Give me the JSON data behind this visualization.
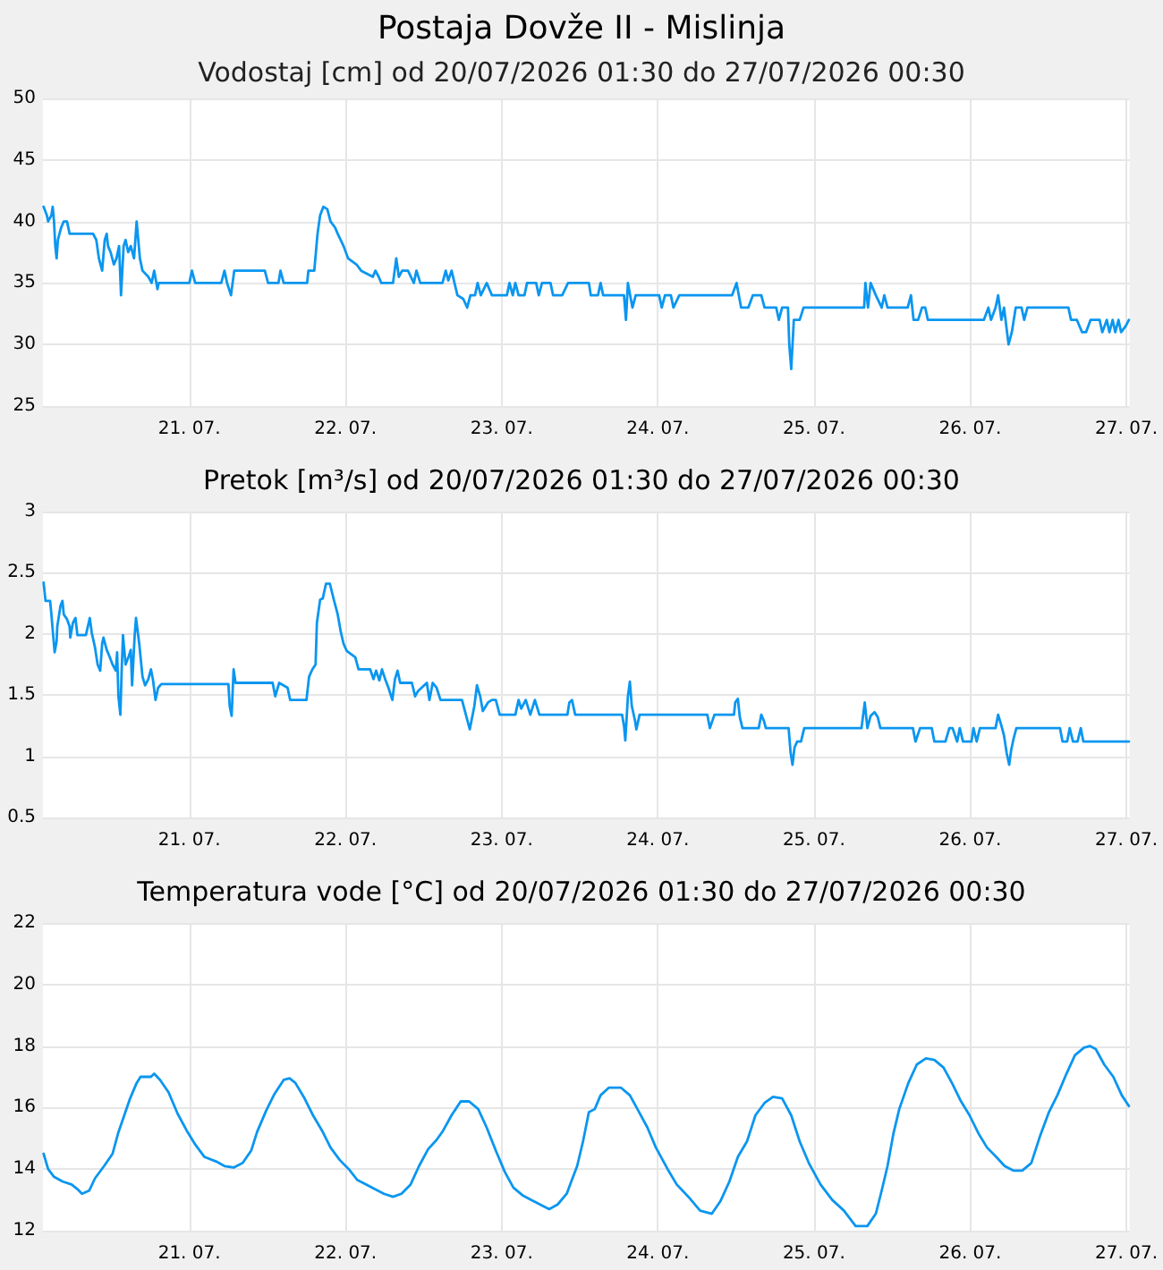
{
  "chart_data": [
    {
      "type": "line",
      "title": "Postaja Dovže II - Mislinja",
      "subtitle": "Vodostaj [cm] od 20/07/2026 01:30 do 27/07/2026 00:30",
      "grid": true,
      "xlim": [
        "2026-07-20T01:30",
        "2026-07-27T00:30"
      ],
      "xticks": [
        {
          "value": "2026-07-21",
          "label": "21. 07."
        },
        {
          "value": "2026-07-22",
          "label": "22. 07."
        },
        {
          "value": "2026-07-23",
          "label": "23. 07."
        },
        {
          "value": "2026-07-24",
          "label": "24. 07."
        },
        {
          "value": "2026-07-25",
          "label": "25. 07."
        },
        {
          "value": "2026-07-26",
          "label": "26. 07."
        },
        {
          "value": "2026-07-27",
          "label": "27. 07."
        }
      ],
      "ylim": [
        25,
        50
      ],
      "yticks": [
        25,
        30,
        35,
        40,
        45,
        50
      ],
      "series": [
        {
          "color": "#0a96f0",
          "x": [
            "2026-07-20T01:36",
            "2026-07-20T02:06",
            "2026-07-20T02:18",
            "2026-07-20T02:48",
            "2026-07-20T03:00",
            "2026-07-20T03:12",
            "2026-07-20T03:24",
            "2026-07-20T03:36",
            "2026-07-20T03:48",
            "2026-07-20T04:18",
            "2026-07-20T04:42",
            "2026-07-20T05:12",
            "2026-07-20T05:36",
            "2026-07-20T09:12",
            "2026-07-20T09:42",
            "2026-07-20T10:06",
            "2026-07-20T10:36",
            "2026-07-20T11:00",
            "2026-07-20T11:18",
            "2026-07-20T11:30",
            "2026-07-20T11:54",
            "2026-07-20T12:24",
            "2026-07-20T12:48",
            "2026-07-20T13:12",
            "2026-07-20T13:30",
            "2026-07-20T13:54",
            "2026-07-20T14:12",
            "2026-07-20T14:36",
            "2026-07-20T15:00",
            "2026-07-20T15:30",
            "2026-07-20T15:54",
            "2026-07-20T16:24",
            "2026-07-20T16:48",
            "2026-07-20T17:42",
            "2026-07-20T18:12",
            "2026-07-20T18:36",
            "2026-07-20T19:06",
            "2026-07-20T19:18",
            "2026-07-21T00:00",
            "2026-07-21T00:24",
            "2026-07-21T00:54",
            "2026-07-21T04:54",
            "2026-07-21T05:24",
            "2026-07-21T05:48",
            "2026-07-21T06:24",
            "2026-07-21T06:54",
            "2026-07-21T11:36",
            "2026-07-21T12:06",
            "2026-07-21T13:42",
            "2026-07-21T14:00",
            "2026-07-21T14:30",
            "2026-07-21T18:06",
            "2026-07-21T18:18",
            "2026-07-21T19:12",
            "2026-07-21T19:42",
            "2026-07-21T20:06",
            "2026-07-21T20:36",
            "2026-07-21T21:12",
            "2026-07-21T21:42",
            "2026-07-21T22:24",
            "2026-07-21T22:48",
            "2026-07-21T23:42",
            "2026-07-22T00:24",
            "2026-07-22T01:42",
            "2026-07-22T02:24",
            "2026-07-22T04:12",
            "2026-07-22T04:36",
            "2026-07-22T05:06",
            "2026-07-22T05:30",
            "2026-07-22T07:18",
            "2026-07-22T07:48",
            "2026-07-22T08:12",
            "2026-07-22T08:42",
            "2026-07-22T09:36",
            "2026-07-22T10:30",
            "2026-07-22T10:54",
            "2026-07-22T11:30",
            "2026-07-22T14:54",
            "2026-07-22T15:24",
            "2026-07-22T15:48",
            "2026-07-22T16:18",
            "2026-07-22T17:12",
            "2026-07-22T18:06",
            "2026-07-22T18:42",
            "2026-07-22T19:12",
            "2026-07-22T19:54",
            "2026-07-22T20:18",
            "2026-07-22T20:48",
            "2026-07-22T21:42",
            "2026-07-22T22:06",
            "2026-07-22T22:30",
            "2026-07-23T00:48",
            "2026-07-23T01:12",
            "2026-07-23T01:42",
            "2026-07-23T02:06",
            "2026-07-23T02:36",
            "2026-07-23T03:30",
            "2026-07-23T03:54",
            "2026-07-23T05:18",
            "2026-07-23T05:42",
            "2026-07-23T06:12",
            "2026-07-23T07:30",
            "2026-07-23T07:54",
            "2026-07-23T09:18",
            "2026-07-23T10:12",
            "2026-07-23T13:24",
            "2026-07-23T13:42",
            "2026-07-23T14:48",
            "2026-07-23T15:12",
            "2026-07-23T15:36",
            "2026-07-23T18:48",
            "2026-07-23T19:06",
            "2026-07-23T19:24",
            "2026-07-23T20:06",
            "2026-07-23T20:36",
            "2026-07-24T00:12",
            "2026-07-24T00:36",
            "2026-07-24T01:06",
            "2026-07-24T02:00",
            "2026-07-24T02:24",
            "2026-07-24T03:18",
            "2026-07-24T11:24",
            "2026-07-24T12:06",
            "2026-07-24T12:48",
            "2026-07-24T13:54",
            "2026-07-24T14:36",
            "2026-07-24T15:54",
            "2026-07-24T16:24",
            "2026-07-24T18:12",
            "2026-07-24T18:36",
            "2026-07-24T19:06",
            "2026-07-24T20:00",
            "2026-07-24T20:12",
            "2026-07-24T20:30",
            "2026-07-24T20:54",
            "2026-07-24T21:48",
            "2026-07-24T22:24",
            "2026-07-25T07:42",
            "2026-07-25T07:54",
            "2026-07-25T08:18",
            "2026-07-25T08:42",
            "2026-07-25T09:30",
            "2026-07-25T10:24",
            "2026-07-25T10:48",
            "2026-07-25T11:18",
            "2026-07-25T14:24",
            "2026-07-25T14:54",
            "2026-07-25T15:18",
            "2026-07-25T16:00",
            "2026-07-25T16:36",
            "2026-07-25T17:06",
            "2026-07-25T17:30",
            "2026-07-25T18:24",
            "2026-07-26T02:06",
            "2026-07-26T02:48",
            "2026-07-26T03:12",
            "2026-07-26T03:54",
            "2026-07-26T04:18",
            "2026-07-26T04:48",
            "2026-07-26T05:12",
            "2026-07-26T05:54",
            "2026-07-26T06:24",
            "2026-07-26T07:00",
            "2026-07-26T07:54",
            "2026-07-26T08:18",
            "2026-07-26T08:48",
            "2026-07-26T15:06",
            "2026-07-26T15:30",
            "2026-07-26T16:24",
            "2026-07-26T17:12",
            "2026-07-26T17:48",
            "2026-07-26T18:30",
            "2026-07-26T19:54",
            "2026-07-26T20:18",
            "2026-07-26T21:00",
            "2026-07-26T21:24",
            "2026-07-26T21:54",
            "2026-07-26T22:18",
            "2026-07-26T22:48",
            "2026-07-26T23:12",
            "2026-07-26T23:54",
            "2026-07-27T00:24"
          ],
          "values": [
            41.2,
            40.5,
            40,
            40.5,
            41.2,
            40,
            38,
            37,
            38.5,
            39.5,
            40,
            40,
            39,
            39,
            38.5,
            37,
            36,
            38.5,
            39,
            38,
            37.5,
            36.5,
            37,
            38,
            34,
            38,
            38.5,
            37.5,
            38,
            37,
            40,
            37,
            36,
            35.5,
            35,
            36,
            34.5,
            35,
            35,
            36,
            35,
            35,
            36,
            35,
            34,
            36,
            36,
            35,
            35,
            36,
            35,
            35,
            36,
            36,
            39,
            40.5,
            41.2,
            41,
            40,
            39.5,
            39,
            38,
            37,
            36.5,
            36,
            35.5,
            36,
            35.5,
            35,
            35,
            37,
            35.5,
            36,
            36,
            35,
            36,
            35,
            35,
            36,
            35.2,
            36,
            34,
            33.7,
            33,
            34,
            34,
            35,
            34,
            35,
            34.5,
            34,
            34,
            35,
            34,
            35,
            34,
            34,
            35,
            35,
            34,
            35,
            35,
            34,
            34,
            35,
            35,
            34,
            34,
            35,
            34,
            34,
            32,
            35,
            33,
            34,
            34,
            33,
            34,
            34,
            33,
            34,
            34,
            35,
            33,
            33,
            34,
            34,
            33,
            33,
            32,
            33,
            33,
            30,
            28,
            32,
            32,
            33,
            33,
            35,
            33,
            35,
            34,
            33,
            34,
            33,
            33,
            34,
            32,
            32,
            33,
            33,
            32,
            32,
            32,
            33,
            32,
            33,
            34,
            32,
            33,
            30,
            31,
            33,
            33,
            32,
            33,
            33,
            32,
            32,
            31,
            31,
            32,
            32,
            31,
            32,
            31,
            32,
            31,
            32,
            31,
            31.5,
            32
          ]
        }
      ]
    },
    {
      "type": "line",
      "title": "Pretok [m³/s] od 20/07/2026 01:30 do 27/07/2026 00:30",
      "grid": true,
      "xlim": [
        "2026-07-20T01:30",
        "2026-07-27T00:30"
      ],
      "xticks": [
        {
          "value": "2026-07-21",
          "label": "21. 07."
        },
        {
          "value": "2026-07-22",
          "label": "22. 07."
        },
        {
          "value": "2026-07-23",
          "label": "23. 07."
        },
        {
          "value": "2026-07-24",
          "label": "24. 07."
        },
        {
          "value": "2026-07-25",
          "label": "25. 07."
        },
        {
          "value": "2026-07-26",
          "label": "26. 07."
        },
        {
          "value": "2026-07-27",
          "label": "27. 07."
        }
      ],
      "ylim": [
        0.5,
        3
      ],
      "yticks": [
        0.5,
        1,
        1.5,
        2,
        2.5,
        3
      ],
      "series": [
        {
          "color": "#0a96f0",
          "x": [
            "2026-07-20T01:36",
            "2026-07-20T01:54",
            "2026-07-20T02:06",
            "2026-07-20T02:36",
            "2026-07-20T02:48",
            "2026-07-20T03:06",
            "2026-07-20T03:18",
            "2026-07-20T03:36",
            "2026-07-20T03:42",
            "2026-07-20T04:12",
            "2026-07-20T04:30",
            "2026-07-20T04:42",
            "2026-07-20T05:12",
            "2026-07-20T05:36",
            "2026-07-20T05:42",
            "2026-07-20T06:06",
            "2026-07-20T06:30",
            "2026-07-20T06:48",
            "2026-07-20T08:06",
            "2026-07-20T08:24",
            "2026-07-20T08:42",
            "2026-07-20T09:00",
            "2026-07-20T09:30",
            "2026-07-20T09:54",
            "2026-07-20T10:18",
            "2026-07-20T10:36",
            "2026-07-20T10:48",
            "2026-07-20T11:18",
            "2026-07-20T11:42",
            "2026-07-20T12:12",
            "2026-07-20T12:42",
            "2026-07-20T12:54",
            "2026-07-20T13:06",
            "2026-07-20T13:24",
            "2026-07-20T13:36",
            "2026-07-20T13:48",
            "2026-07-20T14:12",
            "2026-07-20T14:42",
            "2026-07-20T15:00",
            "2026-07-20T15:12",
            "2026-07-20T15:36",
            "2026-07-20T15:48",
            "2026-07-20T16:18",
            "2026-07-20T16:48",
            "2026-07-20T17:12",
            "2026-07-20T17:42",
            "2026-07-20T18:06",
            "2026-07-20T18:24",
            "2026-07-20T18:48",
            "2026-07-20T19:12",
            "2026-07-20T19:42",
            "2026-07-21T06:00",
            "2026-07-21T06:12",
            "2026-07-21T06:30",
            "2026-07-21T06:48",
            "2026-07-21T07:06",
            "2026-07-21T12:48",
            "2026-07-21T13:12",
            "2026-07-21T13:48",
            "2026-07-21T15:06",
            "2026-07-21T15:30",
            "2026-07-21T18:00",
            "2026-07-21T18:24",
            "2026-07-21T18:54",
            "2026-07-21T19:24",
            "2026-07-21T19:36",
            "2026-07-21T20:06",
            "2026-07-21T20:30",
            "2026-07-21T21:00",
            "2026-07-21T21:36",
            "2026-07-21T22:12",
            "2026-07-21T22:48",
            "2026-07-21T23:18",
            "2026-07-21T23:42",
            "2026-07-22T00:12",
            "2026-07-22T01:30",
            "2026-07-22T02:00",
            "2026-07-22T03:48",
            "2026-07-22T04:18",
            "2026-07-22T04:42",
            "2026-07-22T05:12",
            "2026-07-22T05:36",
            "2026-07-22T06:06",
            "2026-07-22T06:36",
            "2026-07-22T07:12",
            "2026-07-22T07:36",
            "2026-07-22T08:00",
            "2026-07-22T08:24",
            "2026-07-22T10:12",
            "2026-07-22T10:42",
            "2026-07-22T11:06",
            "2026-07-22T12:30",
            "2026-07-22T12:54",
            "2026-07-22T13:24",
            "2026-07-22T14:00",
            "2026-07-22T14:36",
            "2026-07-22T17:54",
            "2026-07-22T18:36",
            "2026-07-22T19:06",
            "2026-07-22T19:48",
            "2026-07-22T20:12",
            "2026-07-22T20:42",
            "2026-07-22T21:06",
            "2026-07-22T21:54",
            "2026-07-22T22:30",
            "2026-07-22T23:06",
            "2026-07-22T23:42",
            "2026-07-23T02:06",
            "2026-07-23T02:36",
            "2026-07-23T03:00",
            "2026-07-23T03:42",
            "2026-07-23T04:24",
            "2026-07-23T05:06",
            "2026-07-23T05:48",
            "2026-07-23T10:06",
            "2026-07-23T10:24",
            "2026-07-23T10:48",
            "2026-07-23T11:18",
            "2026-07-23T18:30",
            "2026-07-23T18:48",
            "2026-07-23T19:00",
            "2026-07-23T19:24",
            "2026-07-23T19:42",
            "2026-07-23T20:00",
            "2026-07-23T20:30",
            "2026-07-23T20:42",
            "2026-07-23T21:12",
            "2026-07-24T07:36",
            "2026-07-24T08:00",
            "2026-07-24T08:42",
            "2026-07-24T11:42",
            "2026-07-24T11:54",
            "2026-07-24T12:18",
            "2026-07-24T12:36",
            "2026-07-24T13:00",
            "2026-07-24T15:30",
            "2026-07-24T15:54",
            "2026-07-24T16:18",
            "2026-07-24T16:36",
            "2026-07-24T20:06",
            "2026-07-24T20:24",
            "2026-07-24T20:42",
            "2026-07-24T21:00",
            "2026-07-24T21:24",
            "2026-07-24T22:00",
            "2026-07-24T22:30",
            "2026-07-25T07:18",
            "2026-07-25T07:48",
            "2026-07-25T08:12",
            "2026-07-25T08:42",
            "2026-07-25T09:18",
            "2026-07-25T09:48",
            "2026-07-25T10:12",
            "2026-07-25T15:12",
            "2026-07-25T15:36",
            "2026-07-25T16:18",
            "2026-07-25T18:06",
            "2026-07-25T18:30",
            "2026-07-25T20:12",
            "2026-07-25T20:48",
            "2026-07-25T21:18",
            "2026-07-25T22:00",
            "2026-07-25T22:24",
            "2026-07-25T22:54",
            "2026-07-26T00:12",
            "2026-07-26T00:30",
            "2026-07-26T01:00",
            "2026-07-26T01:30",
            "2026-07-26T03:54",
            "2026-07-26T04:18",
            "2026-07-26T04:48",
            "2026-07-26T05:12",
            "2026-07-26T05:36",
            "2026-07-26T06:00",
            "2026-07-26T06:18",
            "2026-07-26T06:42",
            "2026-07-26T07:06",
            "2026-07-26T13:48",
            "2026-07-26T14:12",
            "2026-07-26T14:54",
            "2026-07-26T15:18",
            "2026-07-26T15:48",
            "2026-07-26T16:30",
            "2026-07-26T17:00",
            "2026-07-26T17:24",
            "2026-07-27T00:24"
          ],
          "values": [
            2.42,
            2.27,
            2.27,
            2.27,
            2.16,
            1.97,
            1.85,
            1.94,
            2.06,
            2.23,
            2.27,
            2.16,
            2.12,
            2.06,
            1.97,
            2.09,
            2.13,
            1.99,
            1.99,
            2.06,
            2.13,
            2.01,
            1.89,
            1.75,
            1.7,
            1.92,
            1.97,
            1.87,
            1.82,
            1.75,
            1.7,
            1.85,
            1.49,
            1.34,
            1.7,
            1.99,
            1.75,
            1.82,
            1.87,
            1.58,
            1.99,
            2.13,
            1.92,
            1.65,
            1.58,
            1.63,
            1.71,
            1.63,
            1.46,
            1.56,
            1.59,
            1.59,
            1.41,
            1.33,
            1.71,
            1.6,
            1.6,
            1.49,
            1.6,
            1.56,
            1.46,
            1.46,
            1.65,
            1.71,
            1.75,
            2.09,
            2.28,
            2.29,
            2.41,
            2.41,
            2.28,
            2.16,
            2.01,
            1.92,
            1.86,
            1.81,
            1.71,
            1.71,
            1.63,
            1.7,
            1.62,
            1.71,
            1.63,
            1.56,
            1.46,
            1.63,
            1.7,
            1.6,
            1.6,
            1.49,
            1.53,
            1.6,
            1.46,
            1.6,
            1.56,
            1.46,
            1.46,
            1.32,
            1.22,
            1.41,
            1.58,
            1.49,
            1.37,
            1.44,
            1.46,
            1.46,
            1.34,
            1.34,
            1.46,
            1.39,
            1.46,
            1.34,
            1.46,
            1.34,
            1.34,
            1.44,
            1.46,
            1.34,
            1.34,
            1.25,
            1.13,
            1.49,
            1.61,
            1.41,
            1.29,
            1.22,
            1.34,
            1.34,
            1.23,
            1.34,
            1.34,
            1.44,
            1.47,
            1.32,
            1.23,
            1.23,
            1.34,
            1.29,
            1.23,
            1.23,
            1.03,
            0.93,
            1.07,
            1.12,
            1.12,
            1.23,
            1.23,
            1.44,
            1.23,
            1.33,
            1.36,
            1.32,
            1.23,
            1.23,
            1.12,
            1.23,
            1.23,
            1.12,
            1.12,
            1.23,
            1.23,
            1.12,
            1.23,
            1.12,
            1.12,
            1.23,
            1.12,
            1.23,
            1.23,
            1.34,
            1.25,
            1.17,
            1.03,
            0.93,
            1.05,
            1.15,
            1.23,
            1.23,
            1.12,
            1.12,
            1.23,
            1.12,
            1.12,
            1.23,
            1.12,
            1.12
          ]
        }
      ]
    },
    {
      "type": "line",
      "title": "Temperatura vode [°C] od 20/07/2026 01:30 do 27/07/2026 00:30",
      "grid": true,
      "xlim": [
        "2026-07-20T01:30",
        "2026-07-27T00:30"
      ],
      "xticks": [
        {
          "value": "2026-07-21",
          "label": "21. 07."
        },
        {
          "value": "2026-07-22",
          "label": "22. 07."
        },
        {
          "value": "2026-07-23",
          "label": "23. 07."
        },
        {
          "value": "2026-07-24",
          "label": "24. 07."
        },
        {
          "value": "2026-07-25",
          "label": "25. 07."
        },
        {
          "value": "2026-07-26",
          "label": "26. 07."
        },
        {
          "value": "2026-07-27",
          "label": "27. 07."
        }
      ],
      "ylim": [
        12,
        22
      ],
      "yticks": [
        12,
        14,
        16,
        18,
        20,
        22
      ],
      "series": [
        {
          "color": "#0a96f0",
          "x": [
            "2026-07-20T01:36",
            "2026-07-20T02:18",
            "2026-07-20T03:12",
            "2026-07-20T04:30",
            "2026-07-20T05:54",
            "2026-07-20T06:48",
            "2026-07-20T07:30",
            "2026-07-20T08:36",
            "2026-07-20T09:30",
            "2026-07-20T10:54",
            "2026-07-20T12:12",
            "2026-07-20T13:06",
            "2026-07-20T14:00",
            "2026-07-20T14:54",
            "2026-07-20T15:54",
            "2026-07-20T16:30",
            "2026-07-20T18:06",
            "2026-07-20T18:36",
            "2026-07-20T19:30",
            "2026-07-20T20:48",
            "2026-07-20T22:12",
            "2026-07-20T23:36",
            "2026-07-21T00:54",
            "2026-07-21T02:18",
            "2026-07-21T04:06",
            "2026-07-21T05:24",
            "2026-07-21T06:48",
            "2026-07-21T08:12",
            "2026-07-21T09:30",
            "2026-07-21T10:24",
            "2026-07-21T11:48",
            "2026-07-21T13:06",
            "2026-07-21T14:30",
            "2026-07-21T15:24",
            "2026-07-21T16:18",
            "2026-07-21T17:42",
            "2026-07-21T19:00",
            "2026-07-21T20:24",
            "2026-07-21T21:42",
            "2026-07-21T23:06",
            "2026-07-22T00:30",
            "2026-07-22T01:48",
            "2026-07-22T03:12",
            "2026-07-22T04:30",
            "2026-07-22T05:54",
            "2026-07-22T07:18",
            "2026-07-22T08:36",
            "2026-07-22T10:00",
            "2026-07-22T11:18",
            "2026-07-22T12:42",
            "2026-07-22T14:00",
            "2026-07-22T15:00",
            "2026-07-22T16:18",
            "2026-07-22T17:42",
            "2026-07-22T19:00",
            "2026-07-22T20:24",
            "2026-07-22T21:42",
            "2026-07-22T23:06",
            "2026-07-23T00:30",
            "2026-07-23T01:48",
            "2026-07-23T03:12",
            "2026-07-23T04:30",
            "2026-07-23T05:54",
            "2026-07-23T07:18",
            "2026-07-23T08:36",
            "2026-07-23T10:00",
            "2026-07-23T10:42",
            "2026-07-23T11:36",
            "2026-07-23T12:30",
            "2026-07-23T13:24",
            "2026-07-23T14:18",
            "2026-07-23T15:12",
            "2026-07-23T16:30",
            "2026-07-23T18:18",
            "2026-07-23T19:42",
            "2026-07-23T21:00",
            "2026-07-23T22:24",
            "2026-07-23T23:42",
            "2026-07-24T01:30",
            "2026-07-24T02:54",
            "2026-07-24T04:42",
            "2026-07-24T06:30",
            "2026-07-24T08:18",
            "2026-07-24T09:36",
            "2026-07-24T11:00",
            "2026-07-24T12:18",
            "2026-07-24T13:42",
            "2026-07-24T15:00",
            "2026-07-24T16:24",
            "2026-07-24T17:42",
            "2026-07-24T19:06",
            "2026-07-24T20:30",
            "2026-07-24T21:48",
            "2026-07-24T23:12",
            "2026-07-25T01:00",
            "2026-07-25T02:48",
            "2026-07-25T04:36",
            "2026-07-25T06:24",
            "2026-07-25T08:12",
            "2026-07-25T09:30",
            "2026-07-25T10:24",
            "2026-07-25T11:18",
            "2026-07-25T12:12",
            "2026-07-25T13:06",
            "2026-07-25T14:30",
            "2026-07-25T15:48",
            "2026-07-25T17:12",
            "2026-07-25T18:30",
            "2026-07-25T19:54",
            "2026-07-25T21:12",
            "2026-07-25T22:36",
            "2026-07-25T23:54",
            "2026-07-26T01:18",
            "2026-07-26T02:36",
            "2026-07-26T04:00",
            "2026-07-26T05:18",
            "2026-07-26T06:42",
            "2026-07-26T08:00",
            "2026-07-26T09:24",
            "2026-07-26T10:42",
            "2026-07-26T12:06",
            "2026-07-26T13:24",
            "2026-07-26T14:48",
            "2026-07-26T16:06",
            "2026-07-26T17:30",
            "2026-07-26T18:24",
            "2026-07-26T19:18",
            "2026-07-26T20:36",
            "2026-07-26T22:00",
            "2026-07-26T23:18",
            "2026-07-27T00:24"
          ],
          "values": [
            14.5,
            14.0,
            13.75,
            13.6,
            13.5,
            13.35,
            13.2,
            13.3,
            13.7,
            14.1,
            14.5,
            15.2,
            15.75,
            16.3,
            16.8,
            17.0,
            17.0,
            17.1,
            16.9,
            16.5,
            15.8,
            15.25,
            14.8,
            14.4,
            14.25,
            14.1,
            14.05,
            14.2,
            14.6,
            15.2,
            15.9,
            16.45,
            16.9,
            16.95,
            16.8,
            16.3,
            15.75,
            15.25,
            14.7,
            14.3,
            14.0,
            13.65,
            13.5,
            13.35,
            13.2,
            13.1,
            13.2,
            13.5,
            14.1,
            14.65,
            14.95,
            15.25,
            15.75,
            16.2,
            16.2,
            15.95,
            15.35,
            14.6,
            13.9,
            13.4,
            13.15,
            13.0,
            12.85,
            12.7,
            12.85,
            13.2,
            13.6,
            14.1,
            14.9,
            15.85,
            15.95,
            16.4,
            16.65,
            16.65,
            16.4,
            15.9,
            15.35,
            14.7,
            14.0,
            13.5,
            13.1,
            12.65,
            12.55,
            12.95,
            13.6,
            14.4,
            14.9,
            15.75,
            16.15,
            16.35,
            16.3,
            15.75,
            14.9,
            14.2,
            13.5,
            13.0,
            12.65,
            12.15,
            12.15,
            12.55,
            13.3,
            14.1,
            15.15,
            15.95,
            16.8,
            17.4,
            17.6,
            17.55,
            17.3,
            16.8,
            16.2,
            15.75,
            15.15,
            14.7,
            14.4,
            14.1,
            13.95,
            13.95,
            14.2,
            15.05,
            15.85,
            16.4,
            17.1,
            17.7,
            17.95,
            18.0,
            17.9,
            17.4,
            17.0,
            16.4,
            16.05
          ]
        }
      ]
    }
  ]
}
